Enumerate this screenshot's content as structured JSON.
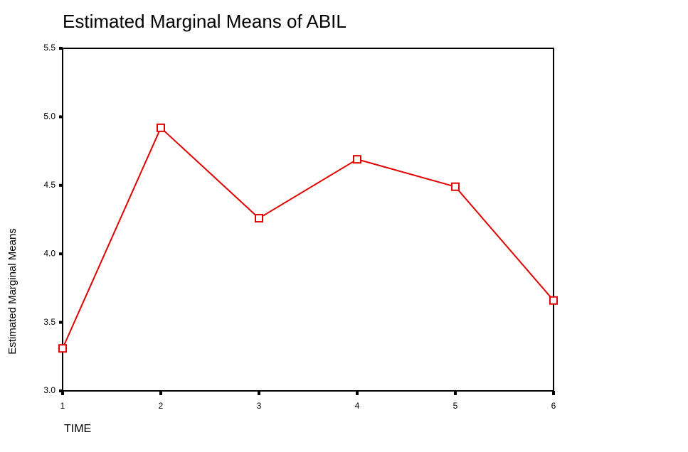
{
  "chart_data": {
    "type": "line",
    "title": "Estimated Marginal Means of ABIL",
    "x_label": "TIME",
    "y_label": "Estimated Marginal Means",
    "x": [
      1,
      2,
      3,
      4,
      5,
      6
    ],
    "series": [
      {
        "name": "ABIL",
        "color": "#e00000",
        "values": [
          3.31,
          4.92,
          4.26,
          4.69,
          4.49,
          3.66
        ]
      }
    ],
    "xlim": [
      1,
      6
    ],
    "xticks": [
      1,
      2,
      3,
      4,
      5,
      6
    ],
    "ylim": [
      3,
      5.5
    ],
    "yticks": [
      {
        "value": 3,
        "label": "3.0"
      },
      3.5,
      {
        "value": 4,
        "label": "4.0"
      },
      4.5,
      {
        "value": 5,
        "label": "5.0"
      },
      5.5
    ]
  }
}
